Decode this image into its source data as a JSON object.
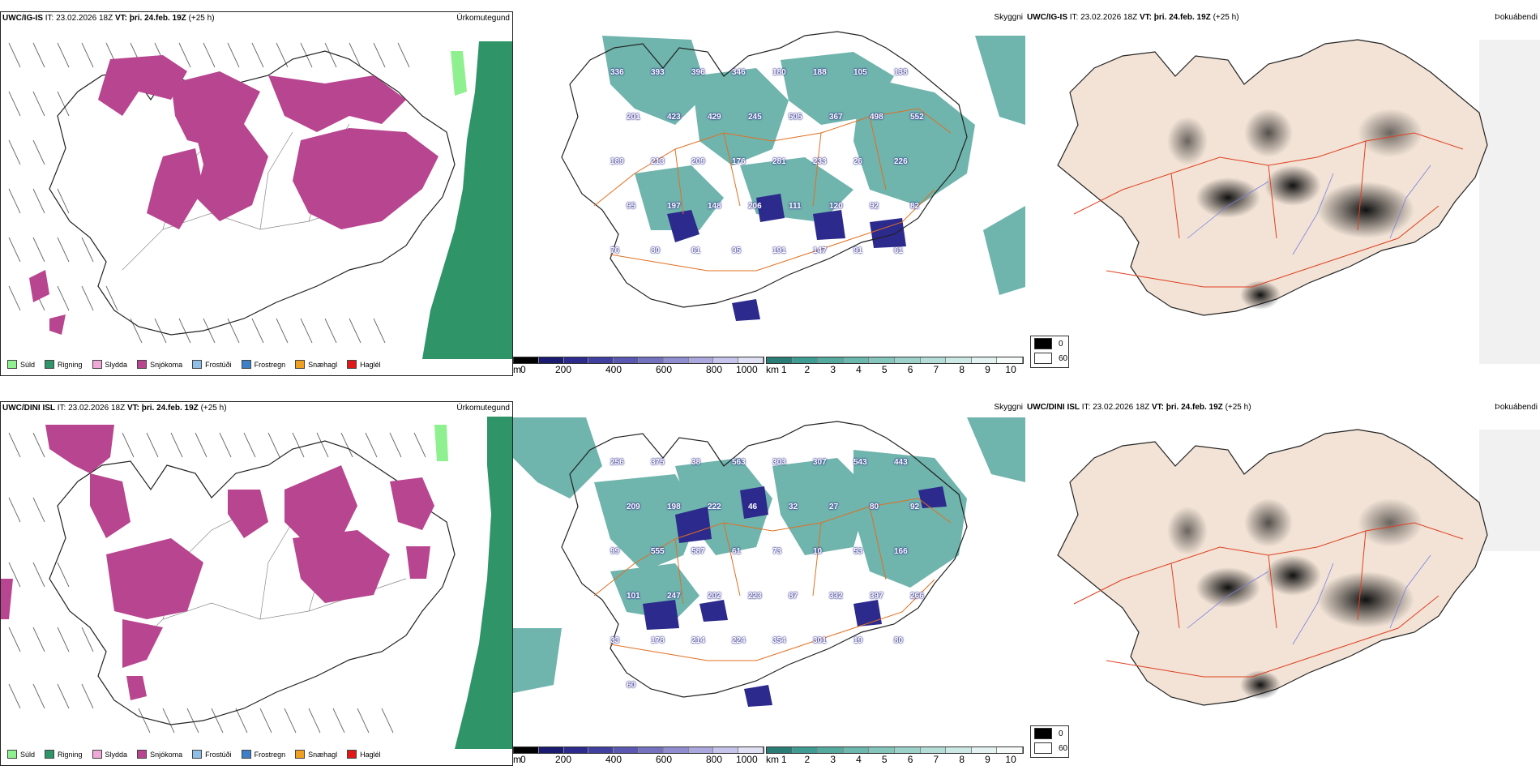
{
  "colors": {
    "precip": {
      "Súld": "#8ef08e",
      "Rigning": "#2f9468",
      "Slydda": "#f0a8d8",
      "Snjókoma": "#b8458f",
      "Frostúði": "#8fbfe8",
      "Frostregn": "#3d7fc8",
      "Snæhagl": "#f0a020",
      "Haglél": "#e01818"
    },
    "teal": "#3f9c92",
    "navy": "#2c2a8c",
    "roads": "#e07020",
    "outline": "#222"
  },
  "rows": [
    {
      "precip": {
        "model": "UWC/IG-IS",
        "it_label": "IT:",
        "it": "23.02.2026 18Z",
        "vt_label": "VT:",
        "vt": "þri. 24.feb. 19Z",
        "lead": "(+25 h)",
        "corner": "Úrkomutegund",
        "legend": [
          "Súld",
          "Rigning",
          "Slydda",
          "Snjókoma",
          "Frostúði",
          "Frostregn",
          "Snæhagl",
          "Haglél"
        ]
      },
      "cloud": {
        "corner": "Skyggni",
        "labels": [
          "336",
          "393",
          "396",
          "346",
          "180",
          "188",
          "105",
          "138",
          "201",
          "423",
          "429",
          "245",
          "505",
          "367",
          "498",
          "552",
          "189",
          "213",
          "209",
          "176",
          "281",
          "233",
          "26",
          "226",
          "95",
          "197",
          "148",
          "206",
          "111",
          "120",
          "92",
          "82",
          "76",
          "80",
          "61",
          "95",
          "191",
          "147",
          "91",
          "61"
        ],
        "scale_m": {
          "unit": "m",
          "ticks": [
            "0",
            "200",
            "400",
            "600",
            "800",
            "1000"
          ]
        },
        "scale_km": {
          "unit": "km",
          "ticks": [
            "1",
            "2",
            "3",
            "4",
            "5",
            "6",
            "7",
            "8",
            "9",
            "10"
          ]
        }
      },
      "fog": {
        "model": "UWC/IG-IS",
        "it_label": "IT:",
        "it": "23.02.2026 18Z",
        "vt_label": "VT:",
        "vt": "þri. 24.feb. 19Z",
        "lead": "(+25 h)",
        "corner": "Þokuábendi",
        "key": [
          "0",
          "60"
        ]
      }
    },
    {
      "precip": {
        "model": "UWC/DINI ISL",
        "it_label": "IT:",
        "it": "23.02.2026 18Z",
        "vt_label": "VT:",
        "vt": "þri. 24.feb. 19Z",
        "lead": "(+25 h)",
        "corner": "Úrkomutegund",
        "legend": [
          "Súld",
          "Rigning",
          "Slydda",
          "Snjókoma",
          "Frostúði",
          "Frostregn",
          "Snæhagl",
          "Haglél"
        ]
      },
      "cloud": {
        "corner": "Skyggni",
        "labels": [
          "256",
          "375",
          "38",
          "563",
          "303",
          "307",
          "543",
          "443",
          "209",
          "198",
          "222",
          "46",
          "32",
          "27",
          "80",
          "92",
          "99",
          "555",
          "587",
          "61",
          "73",
          "10",
          "53",
          "166",
          "101",
          "247",
          "202",
          "223",
          "87",
          "332",
          "397",
          "266",
          "33",
          "178",
          "214",
          "224",
          "354",
          "301",
          "19",
          "80",
          "60"
        ],
        "scale_m": {
          "unit": "m",
          "ticks": [
            "0",
            "200",
            "400",
            "600",
            "800",
            "1000"
          ]
        },
        "scale_km": {
          "unit": "km",
          "ticks": [
            "1",
            "2",
            "3",
            "4",
            "5",
            "6",
            "7",
            "8",
            "9",
            "10"
          ]
        }
      },
      "fog": {
        "model": "UWC/DINI ISL",
        "it_label": "IT:",
        "it": "23.02.2026 18Z",
        "vt_label": "VT:",
        "vt": "þri. 24.feb. 19Z",
        "lead": "(+25 h)",
        "corner": "Þokuábendi",
        "key": [
          "0",
          "60"
        ]
      }
    }
  ]
}
